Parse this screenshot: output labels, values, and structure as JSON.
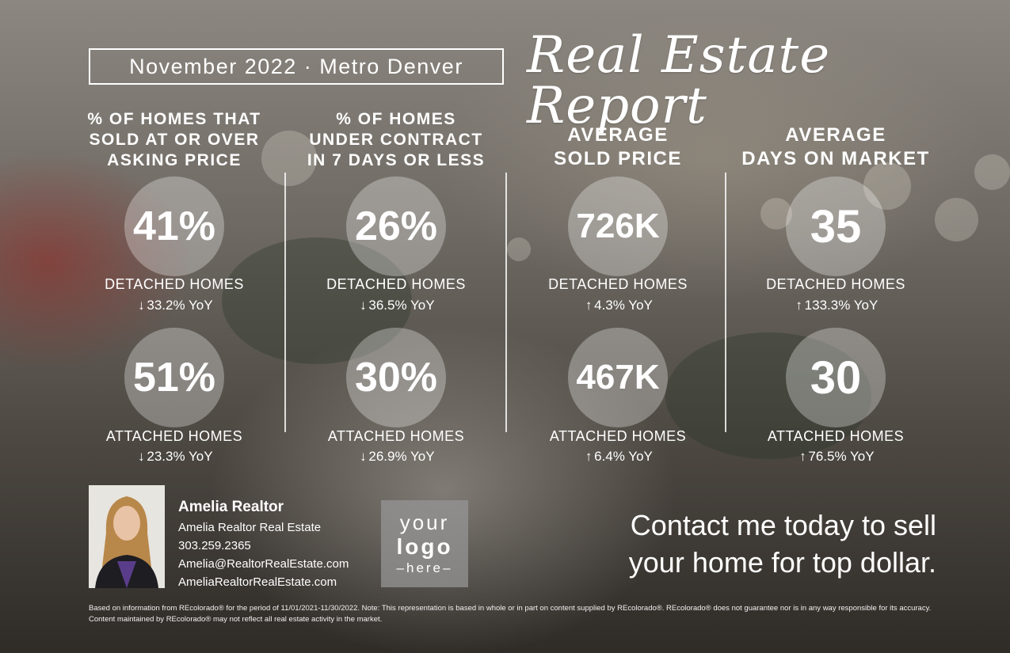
{
  "header": {
    "period": "November 2022 · Metro Denver",
    "title": "Real Estate Report"
  },
  "columns": [
    {
      "heading": "% OF HOMES THAT\nSOLD AT OR OVER\nASKING PRICE",
      "detached": {
        "value": "41%",
        "label": "DETACHED HOMES",
        "direction": "down",
        "yoy": "33.2% YoY"
      },
      "attached": {
        "value": "51%",
        "label": "ATTACHED HOMES",
        "direction": "down",
        "yoy": "23.3% YoY"
      }
    },
    {
      "heading": "% OF HOMES\nUNDER CONTRACT\nIN 7 DAYS OR LESS",
      "detached": {
        "value": "26%",
        "label": "DETACHED HOMES",
        "direction": "down",
        "yoy": "36.5% YoY"
      },
      "attached": {
        "value": "30%",
        "label": "ATTACHED HOMES",
        "direction": "down",
        "yoy": "26.9% YoY"
      }
    },
    {
      "heading": "AVERAGE\nSOLD PRICE",
      "detached": {
        "value": "726K",
        "label": "DETACHED HOMES",
        "direction": "up",
        "yoy": "4.3% YoY"
      },
      "attached": {
        "value": "467K",
        "label": "ATTACHED HOMES",
        "direction": "up",
        "yoy": "6.4% YoY"
      }
    },
    {
      "heading": "AVERAGE\nDAYS ON MARKET",
      "detached": {
        "value": "35",
        "label": "DETACHED HOMES",
        "direction": "up",
        "yoy": "133.3% YoY"
      },
      "attached": {
        "value": "30",
        "label": "ATTACHED HOMES",
        "direction": "up",
        "yoy": "76.5% YoY"
      }
    }
  ],
  "agent": {
    "name": "Amelia Realtor",
    "company": "Amelia Realtor Real Estate",
    "phone": "303.259.2365",
    "email": "Amelia@RealtorRealEstate.com",
    "website": "AmeliaRealtorRealEstate.com"
  },
  "logo": {
    "line1": "your",
    "line2": "logo",
    "line3": "–here–"
  },
  "cta": {
    "line1": "Contact me today to sell",
    "line2": "your home for top dollar."
  },
  "disclaimer": {
    "line1": "Based on information from REcolorado® for the period of 11/01/2021-11/30/2022. Note: This representation is based in whole or in part on content supplied by REcolorado®. REcolorado® does not guarantee nor is in any way responsible for its accuracy.",
    "line2": "Content maintained by REcolorado® may not reflect all real estate activity in the market."
  },
  "icons": {
    "up": "arrow-up-icon",
    "down": "arrow-down-icon"
  },
  "colors": {
    "text": "#ffffff",
    "circle": "rgba(255,255,255,0.30)"
  }
}
